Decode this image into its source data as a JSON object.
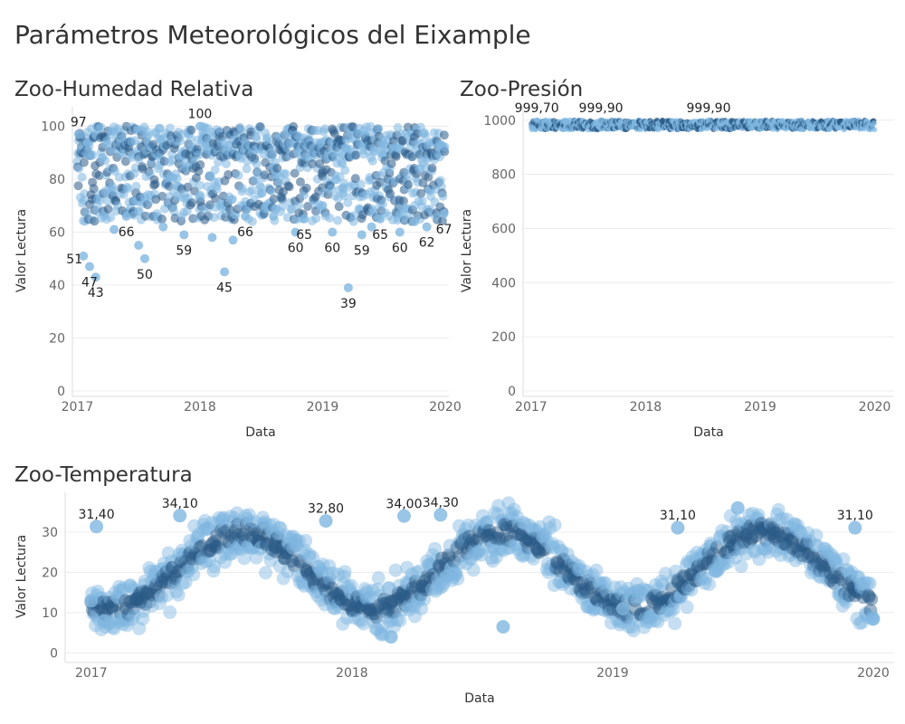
{
  "page": {
    "title": "Parámetros Meteorológicos del Eixample"
  },
  "colors": {
    "dot_light": "#7fb6e0",
    "dot_dark": "#2b5b88",
    "grid": "#ececec",
    "axis": "#dddddd"
  },
  "chart_data": [
    {
      "id": "humidity",
      "type": "scatter",
      "title": "Zoo-Humedad Relativa",
      "xlabel": "Data",
      "ylabel": "Valor Lectura",
      "xlim": [
        2016.96,
        2020.03
      ],
      "ylim": [
        0,
        106
      ],
      "x_ticks": [
        2017,
        2018,
        2019,
        2020
      ],
      "x_tick_labels": [
        "2017",
        "2018",
        "2019",
        "2020"
      ],
      "y_ticks": [
        0,
        20,
        40,
        60,
        80,
        100
      ],
      "y_tick_labels": [
        "0",
        "20",
        "40",
        "60",
        "80",
        "100"
      ],
      "grid": true,
      "series": [
        {
          "points": [
            [
              2017.01,
              97
            ],
            [
              2017.05,
              51
            ],
            [
              2017.1,
              47
            ],
            [
              2017.15,
              43
            ],
            [
              2017.4,
              66
            ],
            [
              2017.55,
              50
            ],
            [
              2017.87,
              59
            ],
            [
              2018.0,
              100
            ],
            [
              2018.2,
              45
            ],
            [
              2018.37,
              66
            ],
            [
              2018.78,
              60
            ],
            [
              2018.85,
              65
            ],
            [
              2019.08,
              60
            ],
            [
              2019.21,
              39
            ],
            [
              2019.32,
              59
            ],
            [
              2019.47,
              65
            ],
            [
              2019.63,
              60
            ],
            [
              2019.85,
              62
            ],
            [
              2019.99,
              67
            ],
            [
              2017.3,
              61
            ],
            [
              2017.5,
              55
            ],
            [
              2017.7,
              62
            ],
            [
              2018.1,
              58
            ],
            [
              2018.27,
              57
            ],
            [
              2018.6,
              66
            ],
            [
              2019.0,
              70
            ],
            [
              2019.4,
              62
            ],
            [
              2019.75,
              64
            ]
          ]
        }
      ],
      "baseline": {
        "shape": "noisy",
        "low": 64,
        "high": 100
      },
      "data_labels": [
        {
          "x": 2017.01,
          "y": 97,
          "text": "97"
        },
        {
          "x": 2017.05,
          "y": 51,
          "text": "51"
        },
        {
          "x": 2017.1,
          "y": 47,
          "text": "47"
        },
        {
          "x": 2017.15,
          "y": 43,
          "text": "43"
        },
        {
          "x": 2017.4,
          "y": 66,
          "text": "66"
        },
        {
          "x": 2017.55,
          "y": 50,
          "text": "50"
        },
        {
          "x": 2017.87,
          "y": 59,
          "text": "59"
        },
        {
          "x": 2018.0,
          "y": 100,
          "text": "100"
        },
        {
          "x": 2018.2,
          "y": 45,
          "text": "45"
        },
        {
          "x": 2018.37,
          "y": 66,
          "text": "66"
        },
        {
          "x": 2018.78,
          "y": 60,
          "text": "60"
        },
        {
          "x": 2018.85,
          "y": 65,
          "text": "65"
        },
        {
          "x": 2019.08,
          "y": 60,
          "text": "60"
        },
        {
          "x": 2019.21,
          "y": 39,
          "text": "39"
        },
        {
          "x": 2019.32,
          "y": 59,
          "text": "59"
        },
        {
          "x": 2019.47,
          "y": 65,
          "text": "65"
        },
        {
          "x": 2019.63,
          "y": 60,
          "text": "60"
        },
        {
          "x": 2019.85,
          "y": 62,
          "text": "62"
        },
        {
          "x": 2019.99,
          "y": 67,
          "text": "67"
        }
      ]
    },
    {
      "id": "pressure",
      "type": "scatter",
      "title": "Zoo-Presión",
      "xlabel": "Data",
      "ylabel": "Valor Lectura",
      "xlim": [
        2016.93,
        2020.17
      ],
      "ylim": [
        0,
        1036
      ],
      "x_ticks": [
        2017,
        2018,
        2019,
        2020
      ],
      "x_tick_labels": [
        "2017",
        "2018",
        "2019",
        "2020"
      ],
      "y_ticks": [
        0,
        200,
        400,
        600,
        800,
        1000
      ],
      "y_tick_labels": [
        "0",
        "200",
        "400",
        "600",
        "800",
        "1000"
      ],
      "grid": true,
      "series": [
        {
          "points": [
            [
              2017.05,
              999.7
            ],
            [
              2017.61,
              999.9
            ],
            [
              2018.55,
              999.9
            ],
            [
              2017.3,
              995
            ],
            [
              2018.0,
              993
            ],
            [
              2019.2,
              998
            ],
            [
              2019.8,
              999
            ]
          ]
        }
      ],
      "baseline": {
        "shape": "flat",
        "low": 965,
        "high": 1000
      },
      "data_labels": [
        {
          "x": 2017.05,
          "y": 999.7,
          "text": "999,70"
        },
        {
          "x": 2017.61,
          "y": 999.9,
          "text": "999,90"
        },
        {
          "x": 2018.55,
          "y": 999.9,
          "text": "999,90"
        }
      ]
    },
    {
      "id": "temperature",
      "type": "scatter",
      "title": "Zoo-Temperatura",
      "xlabel": "Data",
      "ylabel": "Valor Lectura",
      "xlim": [
        2016.9,
        2020.08
      ],
      "ylim": [
        -1,
        39
      ],
      "x_ticks": [
        2017,
        2018,
        2019,
        2020
      ],
      "x_tick_labels": [
        "2017",
        "2018",
        "2019",
        "2020"
      ],
      "y_ticks": [
        0,
        10,
        20,
        30
      ],
      "y_tick_labels": [
        "0",
        "10",
        "20",
        "30"
      ],
      "grid": true,
      "series": [
        {
          "points": [
            [
              2017.02,
              31.4
            ],
            [
              2017.34,
              34.1
            ],
            [
              2017.9,
              32.8
            ],
            [
              2018.2,
              34.0
            ],
            [
              2018.34,
              34.3
            ],
            [
              2019.25,
              31.1
            ],
            [
              2019.93,
              31.1
            ],
            [
              2018.15,
              4
            ],
            [
              2018.58,
              6.5
            ],
            [
              2019.04,
              11
            ],
            [
              2017.05,
              8
            ],
            [
              2019.48,
              36
            ],
            [
              2017.0,
              13
            ],
            [
              2020.0,
              8.5
            ]
          ]
        }
      ],
      "baseline": {
        "shape": "seasonal",
        "low": 9,
        "high": 32
      },
      "data_labels": [
        {
          "x": 2017.02,
          "y": 31.4,
          "text": "31,40"
        },
        {
          "x": 2017.34,
          "y": 34.1,
          "text": "34,10"
        },
        {
          "x": 2017.9,
          "y": 32.8,
          "text": "32,80"
        },
        {
          "x": 2018.2,
          "y": 34.0,
          "text": "34,00"
        },
        {
          "x": 2018.34,
          "y": 34.3,
          "text": "34,30"
        },
        {
          "x": 2019.25,
          "y": 31.1,
          "text": "31,10"
        },
        {
          "x": 2019.93,
          "y": 31.1,
          "text": "31,10"
        }
      ]
    }
  ]
}
